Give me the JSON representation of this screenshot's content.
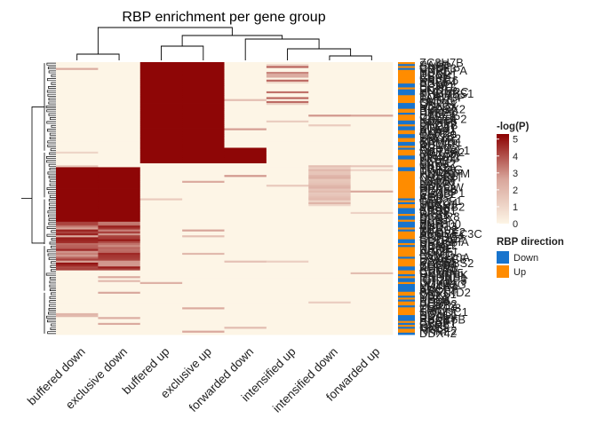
{
  "chart_data": {
    "type": "heatmap",
    "title": "RBP enrichment per gene group",
    "columns": [
      "buffered down",
      "exclusive down",
      "buffered up",
      "exclusive up",
      "forwarded down",
      "intensified up",
      "intensified down",
      "forwarded up"
    ],
    "row_labels": [
      "ZC3H7B",
      "SAFB",
      "CNBP",
      "CPSF3",
      "HNRNPA",
      "YBX1",
      "PCBP1",
      "RBM4",
      "GLB1",
      "XRCC6",
      "SRSF4",
      "PUM2",
      "SF3B1",
      "UCHL5",
      "FUS",
      "HNRNPC",
      "KHDRBS1",
      "ELAVL1",
      "TARDBP",
      "FMR1",
      "QKI",
      "LARP4",
      "DDX3X",
      "NONO",
      "RBFOX2",
      "EIF4A3",
      "PTBP1",
      "U2AF2",
      "CELF1",
      "IGF2BP2",
      "NOP58",
      "SRSF9",
      "LIN28B",
      "SND1",
      "STAU1",
      "AKAP1",
      "FXR2",
      "DHX30",
      "TAF15",
      "ZNF622",
      "RBM15",
      "GRWD1",
      "BCCIP",
      "AUH",
      "NSUN2",
      "SUPV3L1",
      "METAP2",
      "DDX55",
      "EWSR1",
      "WDR43",
      "FKBP4",
      "SLTM",
      "SAFB2",
      "NKRF",
      "TRA2A",
      "YWHAG",
      "PPIL4",
      "HNRNPM",
      "KHSRP",
      "CSTF2T",
      "MTPAP",
      "UTP18",
      "LARP7",
      "DDX6",
      "GPKOW",
      "PRPF8",
      "DDX59",
      "SERBP1",
      "EIF3G",
      "AQR",
      "FTO",
      "GTF2F1",
      "TBRG4",
      "DDX21",
      "ZRANB2",
      "XPO5",
      "SRSF1",
      "WRN",
      "RPS3",
      "DGCR8",
      "SBDS",
      "SSB",
      "HLTF",
      "ZNF800",
      "BUD13",
      "ILF3",
      "NCBP2",
      "TROVE2",
      "APOBEC3C",
      "PABPC4",
      "EFTUD2",
      "CDC40",
      "DROSHA",
      "SF3B4",
      "RBM22",
      "NIPBL",
      "PHF6",
      "AGGF1",
      "NPM1",
      "LSM11",
      "FAM120A",
      "EXOSC5",
      "U2AF1",
      "KHDRBS2",
      "CPEB4",
      "ZFP36",
      "RBM10",
      "CSTF2",
      "GEMIN5",
      "HNRNPK",
      "HNRNPL",
      "IGF2BP1",
      "IGF2BP3",
      "DDX24",
      "POLR2G",
      "MATR3",
      "SUGP2",
      "ABCF1",
      "FASTKD2",
      "DDX51",
      "YBX3",
      "UPF1",
      "PUM1",
      "SLBP",
      "PCBP2",
      "DDX52",
      "ZNF408",
      "TIA1",
      "SMNDC1",
      "NOLC1",
      "SDAD1",
      "RPS11",
      "RBM15B",
      "SRSF7",
      "G3BP1",
      "FXR1",
      "GNL3",
      "MSI2",
      "NKRF2",
      "DDX42"
    ],
    "direction_legend": [
      "Down",
      "Up"
    ],
    "scale_ticks": [
      5,
      4,
      3,
      2,
      1,
      0
    ],
    "scale_label": "-log(P)",
    "legend_title_direction": "RBP direction",
    "color_low": "#FDF5E6",
    "color_high": "#8B0000",
    "direction_colors": {
      "Down": "#1874CD",
      "Up": "#FF8C00"
    },
    "zlim": [
      0,
      5.3
    ]
  }
}
